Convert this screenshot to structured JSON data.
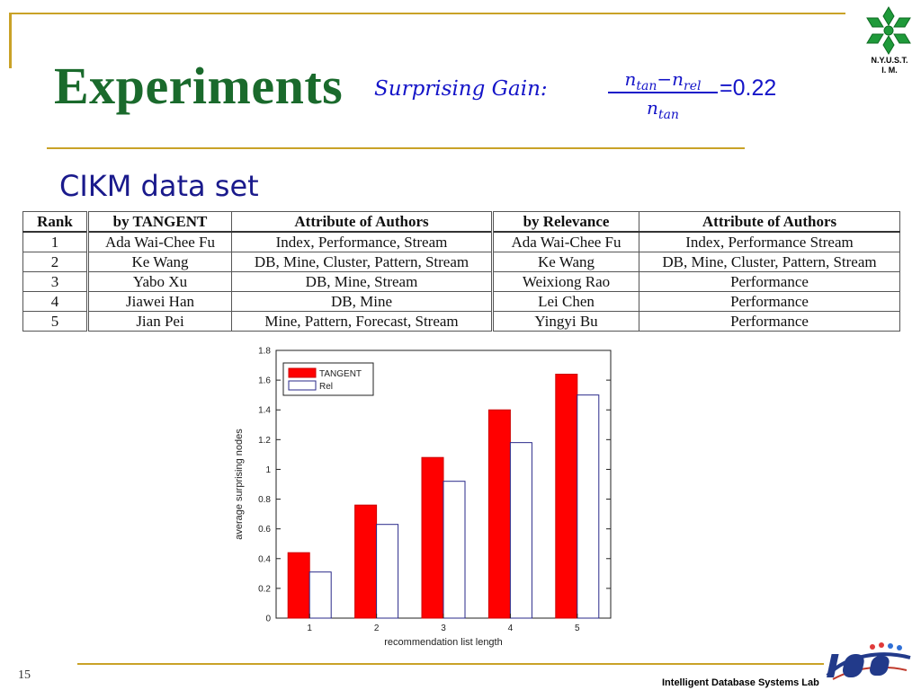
{
  "slide": {
    "title": "Experiments",
    "subtitle": "CIKM data set",
    "page_number": "15",
    "footer": "Intelligent Database Systems Lab",
    "logo_caption_line1": "N.Y.U.S.T.",
    "logo_caption_line2": "I. M.",
    "logo_icon": "snowflake-emblem-icon",
    "brand_logo": "ids-lab-logo-icon",
    "title_color": "#1a6a2c",
    "accent_rule_color": "#c9a227"
  },
  "formula": {
    "label": "Surprising Gain:",
    "numerator": "n_tan−n_rel",
    "denominator": "n_tan",
    "value": "=0.22",
    "color": "#1414c8"
  },
  "table": {
    "headers": [
      "Rank",
      "by TANGENT",
      "Attribute of Authors",
      "by Relevance",
      "Attribute of Authors"
    ],
    "rows": [
      [
        "1",
        "Ada Wai-Chee Fu",
        "Index, Performance, Stream",
        "Ada Wai-Chee Fu",
        "Index, Performance Stream"
      ],
      [
        "2",
        "Ke Wang",
        "DB, Mine, Cluster, Pattern, Stream",
        "Ke Wang",
        "DB, Mine, Cluster, Pattern, Stream"
      ],
      [
        "3",
        "Yabo Xu",
        "DB, Mine, Stream",
        "Weixiong Rao",
        "Performance"
      ],
      [
        "4",
        "Jiawei Han",
        "DB, Mine",
        "Lei Chen",
        "Performance"
      ],
      [
        "5",
        "Jian Pei",
        "Mine, Pattern, Forecast, Stream",
        "Yingyi Bu",
        "Performance"
      ]
    ]
  },
  "chart_data": {
    "type": "bar",
    "categories": [
      "1",
      "2",
      "3",
      "4",
      "5"
    ],
    "series": [
      {
        "name": "TANGENT",
        "values": [
          0.44,
          0.76,
          1.08,
          1.4,
          1.64
        ],
        "color": "#ff0000"
      },
      {
        "name": "Rel",
        "values": [
          0.31,
          0.63,
          0.92,
          1.18,
          1.5
        ],
        "color": "#ffffff"
      }
    ],
    "xlabel": "recommendation list length",
    "ylabel": "average surprising nodes",
    "ylim": [
      0,
      1.8
    ],
    "yticks": [
      "0",
      "0.2",
      "0.4",
      "0.6",
      "0.8",
      "1",
      "1.2",
      "1.4",
      "1.6",
      "1.8"
    ],
    "grid": false,
    "legend_position": "top-left"
  }
}
